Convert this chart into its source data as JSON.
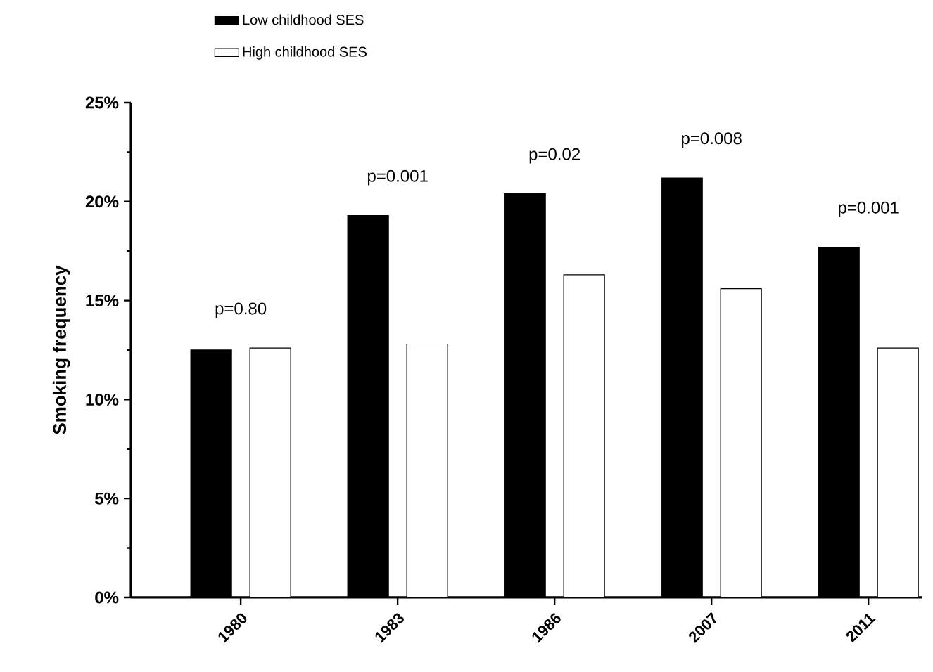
{
  "chart_data": {
    "type": "bar",
    "ylabel": "Smoking frequency",
    "categories": [
      "1980",
      "1983",
      "1986",
      "2007",
      "2011"
    ],
    "series": [
      {
        "name": "Low childhood SES",
        "color": "#000000",
        "values": [
          12.5,
          19.3,
          20.4,
          21.2,
          17.7
        ]
      },
      {
        "name": "High childhood SES",
        "color": "#ffffff",
        "values": [
          12.6,
          12.8,
          16.3,
          15.6,
          12.6
        ]
      }
    ],
    "ylim": [
      0,
      25
    ],
    "yticks": [
      {
        "value": 0,
        "label": "0%"
      },
      {
        "value": 5,
        "label": "5%"
      },
      {
        "value": 10,
        "label": "10%"
      },
      {
        "value": 15,
        "label": "15%"
      },
      {
        "value": 20,
        "label": "20%"
      },
      {
        "value": 25,
        "label": "25%"
      }
    ],
    "annotations": [
      "p=0.80",
      "p=0.001",
      "p=0.02",
      "p=0.008",
      "p=0.001"
    ],
    "legend": "top left",
    "grid": false
  }
}
